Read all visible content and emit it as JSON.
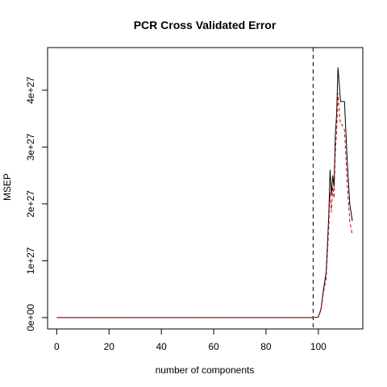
{
  "chart_data": {
    "type": "line",
    "title": "PCR Cross Validated Error",
    "xlabel": "number of components",
    "ylabel": "MSEP",
    "xlim": [
      -3.5,
      117
    ],
    "ylim": [
      -2e+26,
      4.75e+27
    ],
    "xticks": [
      0,
      20,
      40,
      60,
      80,
      100
    ],
    "yticks": [
      0,
      1e+27,
      2e+27,
      3e+27,
      4e+27
    ],
    "xtick_labels": [
      "0",
      "20",
      "40",
      "60",
      "80",
      "100"
    ],
    "ytick_labels": [
      "0e+00",
      "1e+27",
      "2e+27",
      "3e+27",
      "4e+27"
    ],
    "vline": {
      "x": 98,
      "style": "dashed",
      "color": "#000000"
    },
    "grid": false,
    "legend": "none",
    "series": [
      {
        "style": "solid",
        "color": "#000000",
        "x": [
          0,
          98,
          99,
          100,
          101,
          102,
          103,
          104,
          104.5,
          105,
          105.5,
          106,
          106.5,
          107,
          107.5,
          108,
          108.5,
          109,
          110,
          111,
          112,
          113
        ],
        "y": [
          0,
          0,
          1e+24,
          1e+25,
          1.5e+26,
          5e+26,
          8e+26,
          1.8e+27,
          2.6e+27,
          2.15e+27,
          2.5e+27,
          2.3e+27,
          3.2e+27,
          3.6e+27,
          4.4e+27,
          4.1e+27,
          3.8e+27,
          3.8e+27,
          3.8e+27,
          2.8e+27,
          2e+27,
          1.7e+27
        ]
      },
      {
        "style": "dashed",
        "color": "#cc0000",
        "x": [
          0,
          98,
          99,
          100,
          101,
          102,
          103,
          104,
          104.5,
          105,
          105.5,
          106,
          106.5,
          107,
          107.5,
          108,
          108.5,
          109,
          110,
          111,
          112,
          113
        ],
        "y": [
          0,
          0,
          1e+24,
          1e+25,
          1.3e+26,
          4.5e+26,
          7e+26,
          1.6e+27,
          2.2e+27,
          1.85e+27,
          2.3e+27,
          2.1e+27,
          2.9e+27,
          3.3e+27,
          3.95e+27,
          3.6e+27,
          3.4e+27,
          3.4e+27,
          3.3e+27,
          2.4e+27,
          1.7e+27,
          1.45e+27
        ]
      }
    ]
  }
}
